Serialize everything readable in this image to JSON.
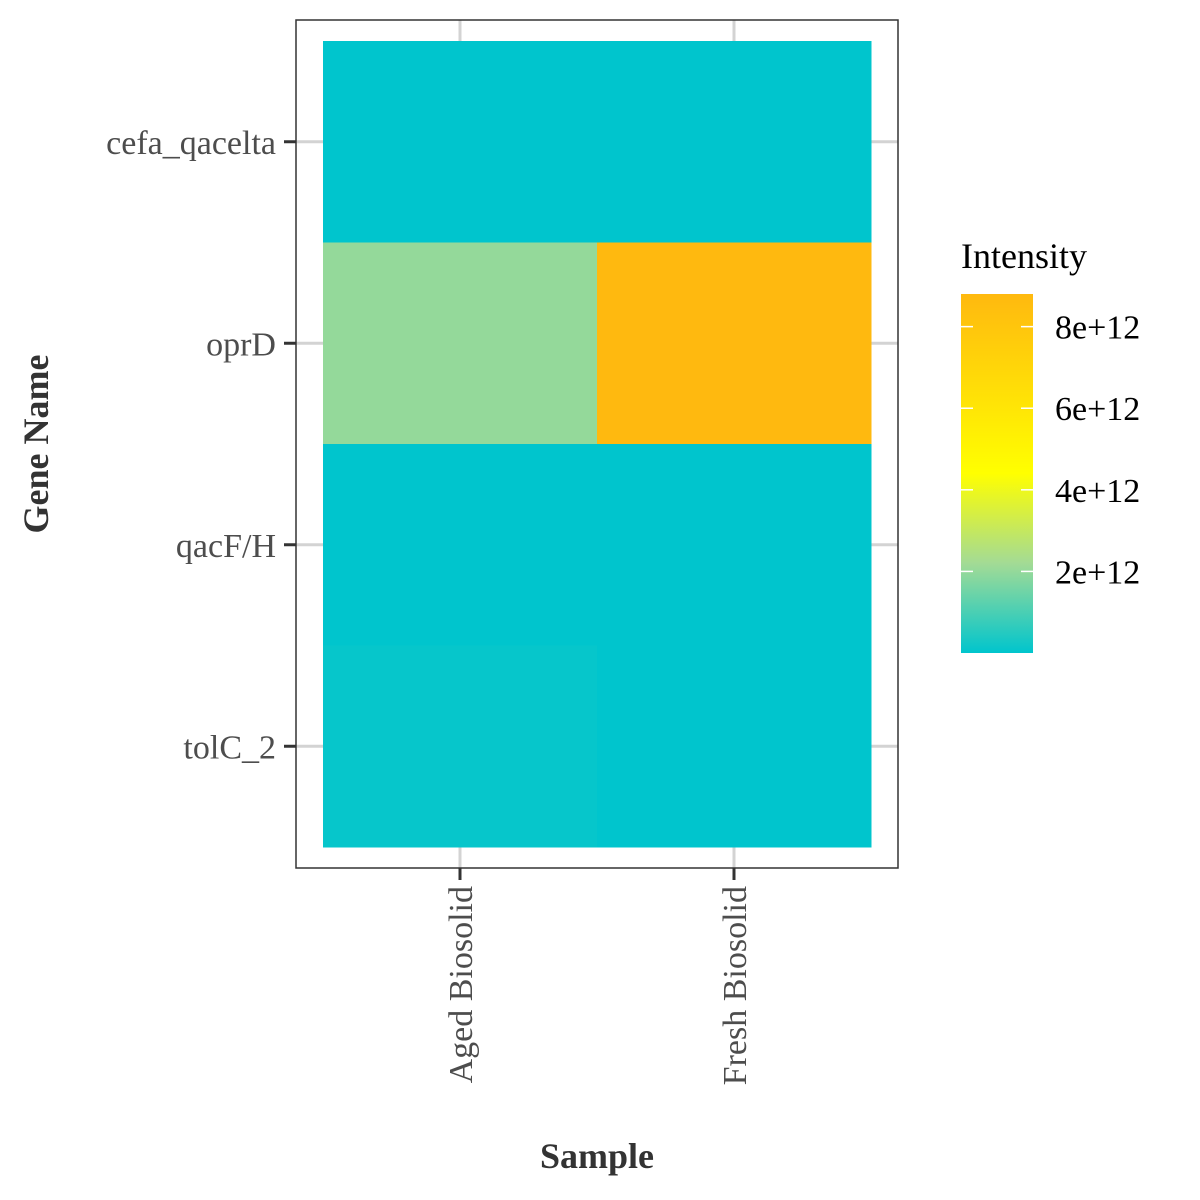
{
  "chart_data": {
    "type": "heatmap",
    "xlabel": "Sample",
    "ylabel": "Gene Name",
    "x_categories": [
      "Aged Biosolid",
      "Fresh Biosolid"
    ],
    "y_categories": [
      "cefa_qacelta",
      "oprD",
      "qacF/H",
      "tolC_2"
    ],
    "values": [
      [
        0.0,
        0.0
      ],
      [
        2000000000000.0,
        8800000000000.0
      ],
      [
        0.0,
        0.0
      ],
      [
        80000000000.0,
        0.0
      ]
    ],
    "grid": true,
    "legend": {
      "title": "Intensity",
      "position": "right",
      "ticks": [
        2000000000000.0,
        4000000000000.0,
        6000000000000.0,
        8000000000000.0
      ],
      "tick_labels": [
        "2e+12",
        "4e+12",
        "6e+12",
        "8e+12"
      ],
      "range": [
        0,
        8800000000000.0
      ],
      "colors": [
        "#00C5CD",
        "#A3DB95",
        "#FFFF00",
        "#FFB90F"
      ],
      "color_stops": [
        0,
        0.25,
        0.5,
        1.0
      ]
    }
  }
}
